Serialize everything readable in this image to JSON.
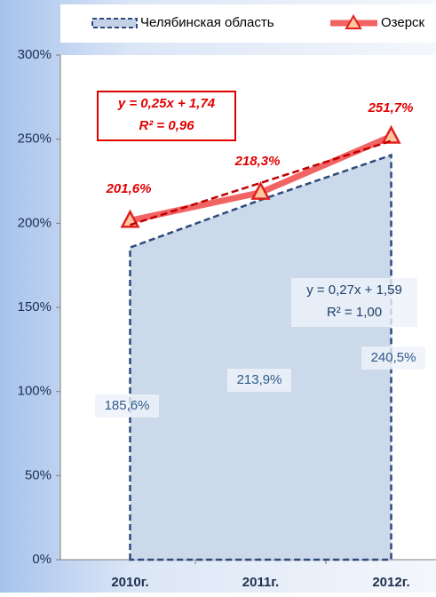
{
  "chart_data": {
    "type": "line",
    "categories": [
      "2010г.",
      "2011г.",
      "2012г."
    ],
    "series": [
      {
        "name": "Челябинская область",
        "type": "area",
        "color": "#2f4a7a",
        "fill": "#c3d2e6",
        "values": [
          185.6,
          213.9,
          240.5
        ],
        "value_labels": [
          "185,6%",
          "213,9%",
          "240,5%"
        ]
      },
      {
        "name": "Озерск",
        "type": "line",
        "color": "#f04848",
        "values": [
          201.6,
          218.3,
          251.7
        ],
        "value_labels": [
          "201,6%",
          "218,3%",
          "251,7%"
        ]
      }
    ],
    "trendlines": [
      {
        "color": "#c00000",
        "values": [
          199,
          224,
          249
        ]
      }
    ],
    "annotations": [
      {
        "lines": [
          "y = 0,25x + 1,74",
          "R² = 0,96"
        ],
        "color": "#e00000"
      },
      {
        "lines": [
          "y = 0,27x + 1,59",
          "R² = 1,00"
        ],
        "color": "#1f3f6a"
      }
    ],
    "ylim": [
      0,
      300
    ],
    "yticks": [
      {
        "value": 0,
        "label": "0%"
      },
      {
        "value": 50,
        "label": "50%"
      },
      {
        "value": 100,
        "label": "100%"
      },
      {
        "value": 150,
        "label": "150%"
      },
      {
        "value": 200,
        "label": "200%"
      },
      {
        "value": 250,
        "label": "250%"
      },
      {
        "value": 300,
        "label": "300%"
      }
    ],
    "grid": false
  }
}
